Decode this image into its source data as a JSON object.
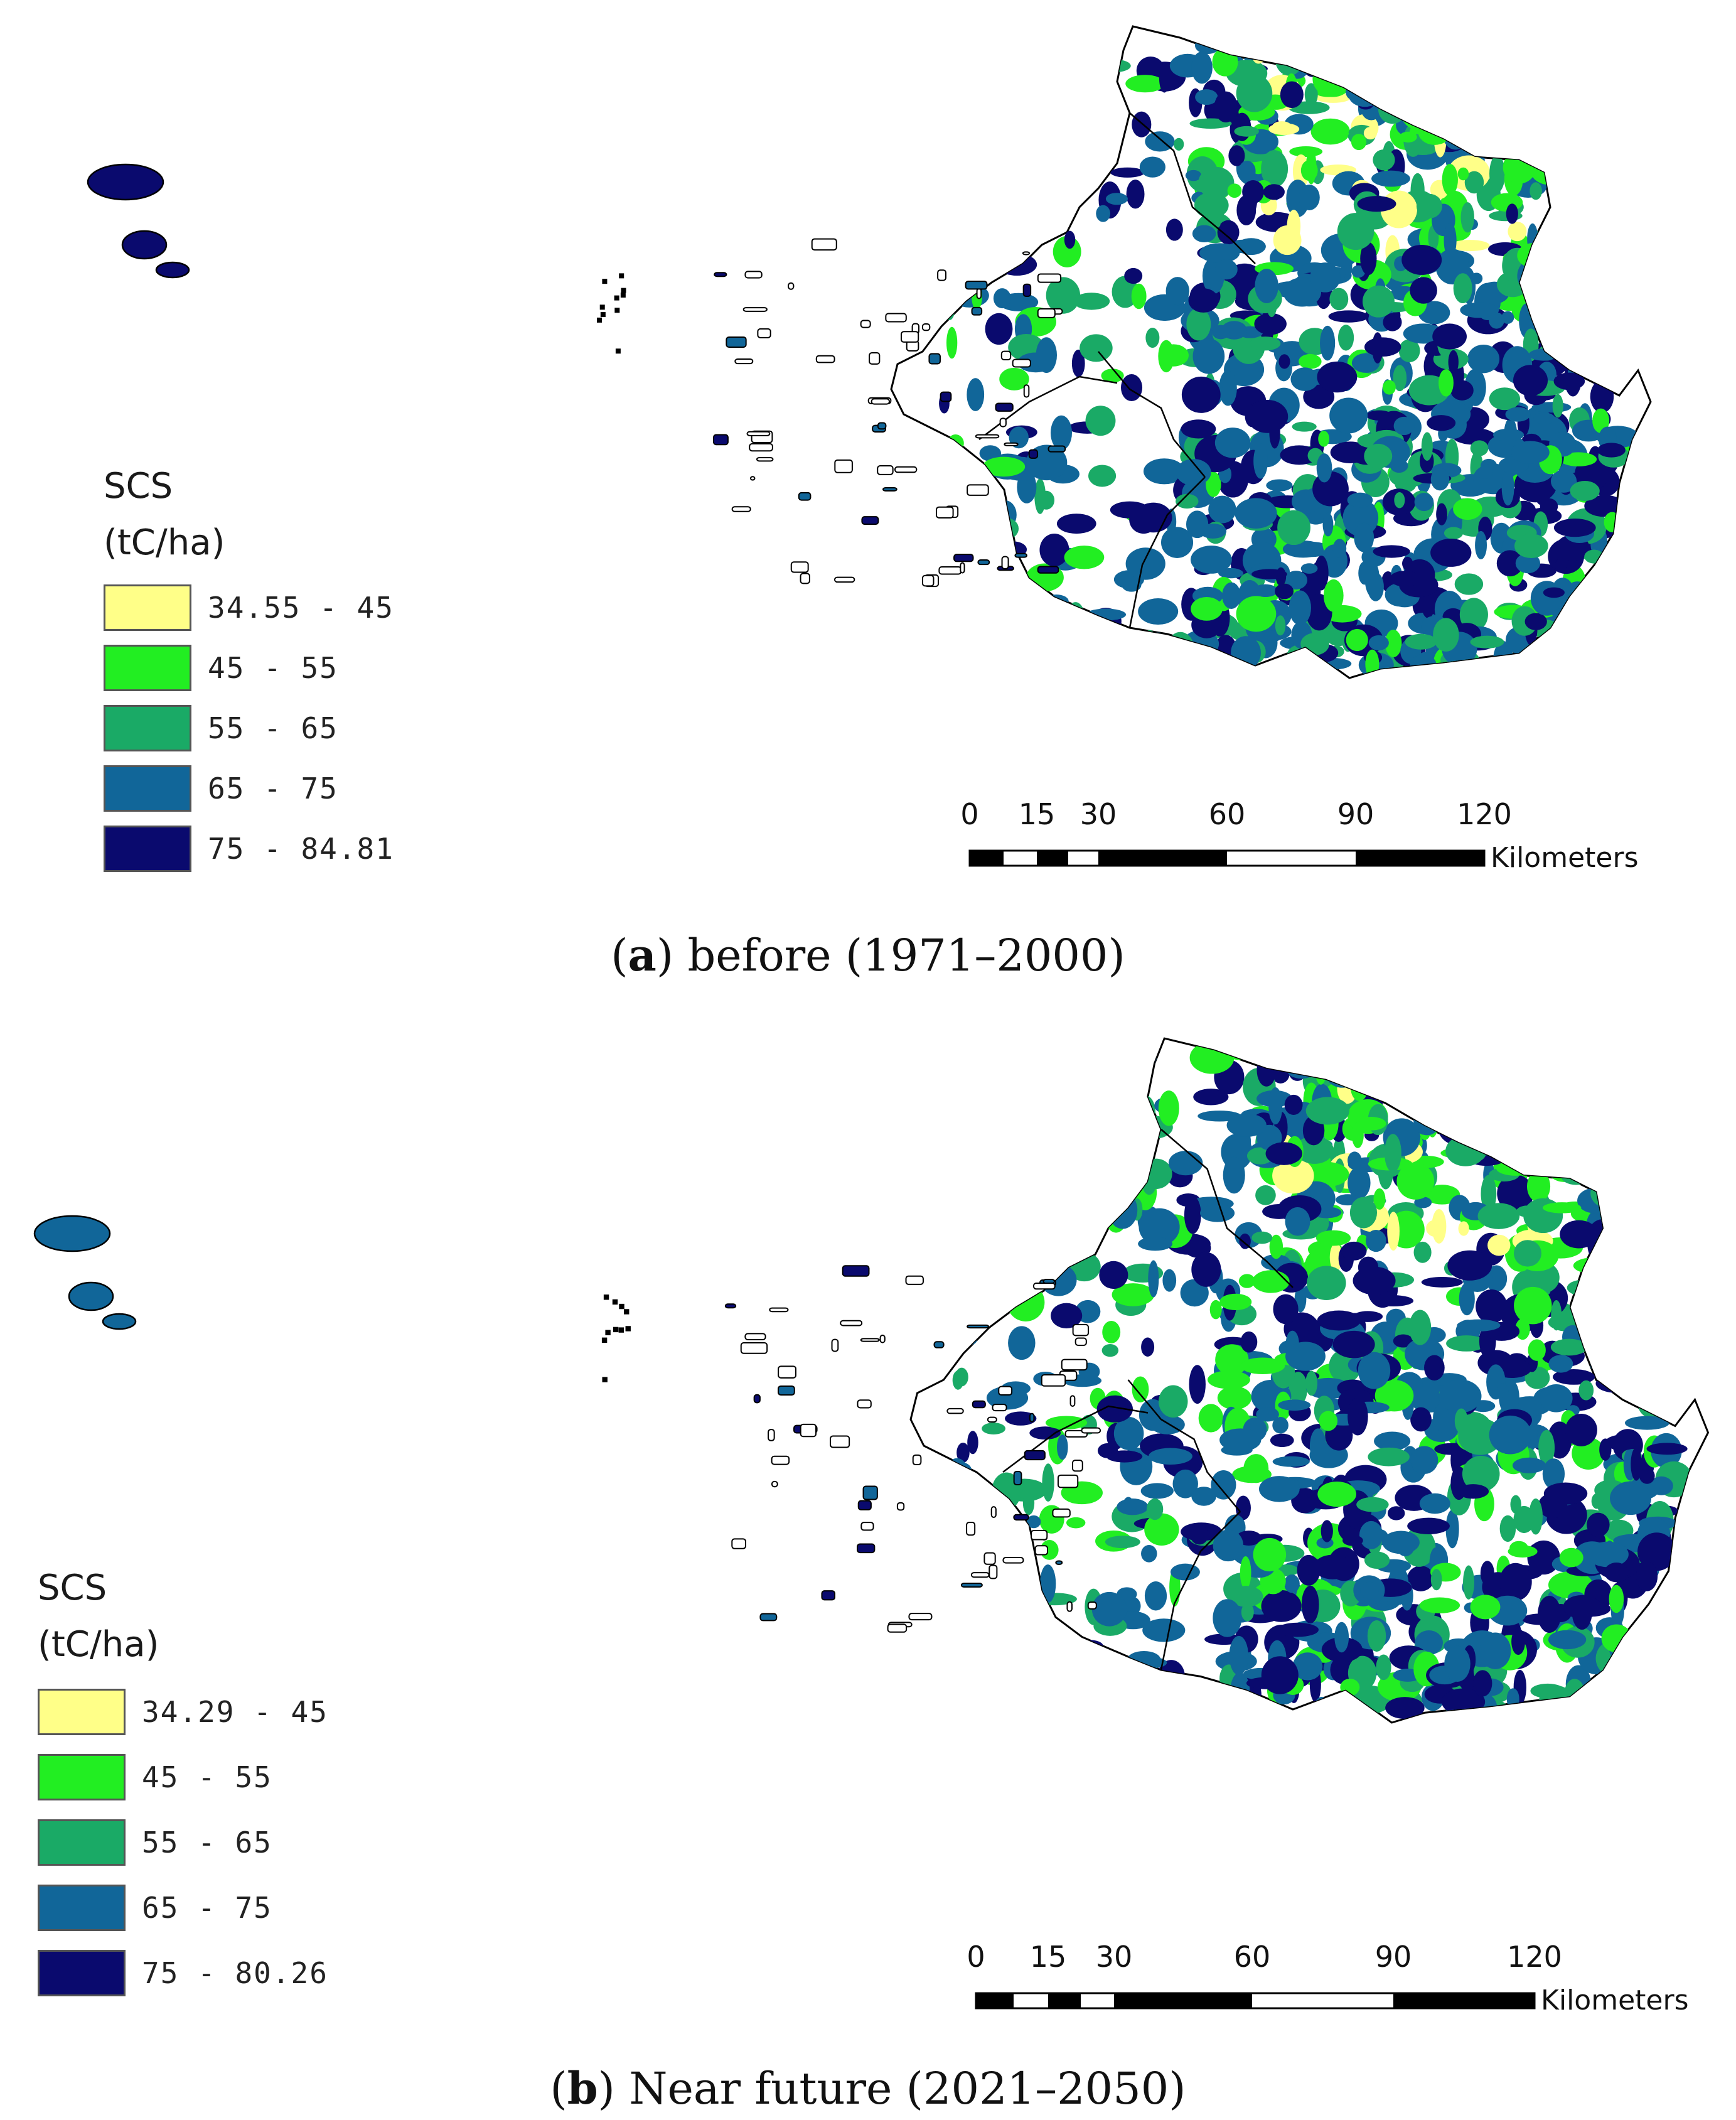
{
  "colors": {
    "class1": "#ffff88",
    "class2": "#22ee22",
    "class3": "#1aaa66",
    "class4": "#116699",
    "class5": "#0a0a6e",
    "outline": "#000000"
  },
  "panels": [
    {
      "legend": {
        "title_line1": "SCS",
        "title_line2": "(tC/ha)",
        "classes": [
          "34.55 - 45",
          "45 - 55",
          "55 - 65",
          "65 - 75",
          "75 - 84.81"
        ]
      },
      "scalebar": {
        "ticks": [
          "0",
          "15",
          "30",
          "60",
          "90",
          "120"
        ],
        "unit": "Kilometers"
      },
      "caption": {
        "letter": "a",
        "text": "before (1971–2000)"
      }
    },
    {
      "legend": {
        "title_line1": "SCS",
        "title_line2": "(tC/ha)",
        "classes": [
          "34.29 - 45",
          "45 - 55",
          "55 - 65",
          "65 - 75",
          "75 - 80.26"
        ]
      },
      "scalebar": {
        "ticks": [
          "0",
          "15",
          "30",
          "60",
          "90",
          "120"
        ],
        "unit": "Kilometers"
      },
      "caption": {
        "letter": "b",
        "text": "Near future (2021–2050)"
      }
    }
  ]
}
